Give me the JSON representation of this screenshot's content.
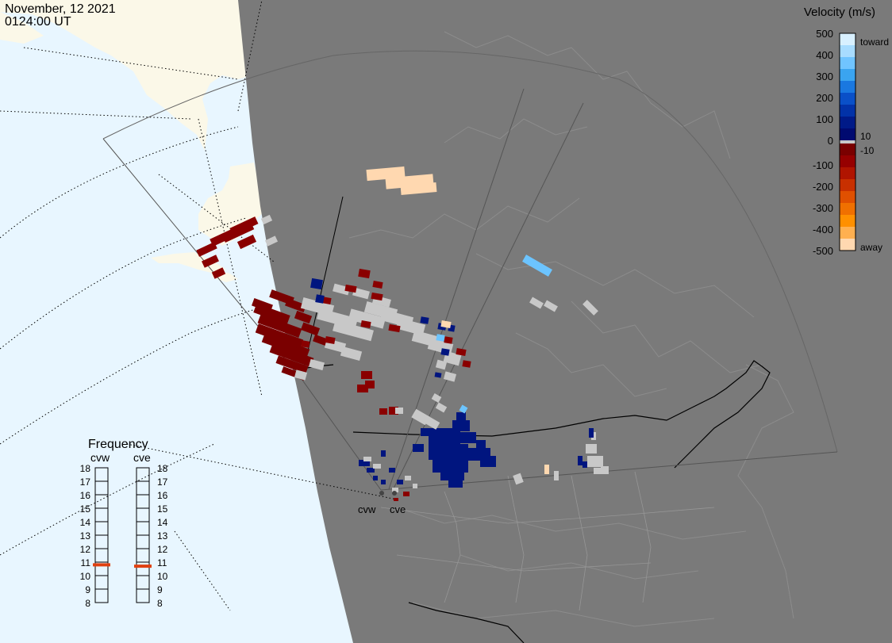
{
  "header": {
    "date": "November, 12 2021",
    "time": "0124:00 UT"
  },
  "colorbar": {
    "title": "Velocity (m/s)",
    "tick_labels": [
      "500",
      "400",
      "300",
      "200",
      "100",
      "0",
      "-100",
      "-200",
      "-300",
      "-400",
      "-500"
    ],
    "tick_values": [
      500,
      400,
      300,
      200,
      100,
      0,
      -100,
      -200,
      -300,
      -400,
      -500
    ],
    "label_toward": "toward",
    "label_away": "away",
    "label_pos_threshold": "10",
    "label_neg_threshold": "-10",
    "colors_toward": [
      "#d8f0ff",
      "#a8dcff",
      "#70c4ff",
      "#3aa4f0",
      "#1a78e0",
      "#0a50c8",
      "#0232a8",
      "#001a88",
      "#000a70"
    ],
    "colors_away": [
      "#7a0000",
      "#960000",
      "#b01400",
      "#c83000",
      "#e05000",
      "#f07000",
      "#ff9000",
      "#ffb050",
      "#ffd8b0"
    ],
    "ground_scatter_color": "#c8c8c8"
  },
  "radars": {
    "west_label": "cvw",
    "east_label": "cve"
  },
  "frequency": {
    "title": "Frequency",
    "col1_label": "cvw",
    "col2_label": "cve",
    "scale_labels": [
      "18",
      "17",
      "16",
      "15",
      "14",
      "13",
      "12",
      "11",
      "10",
      "9",
      "8"
    ],
    "scale_values": [
      18,
      17,
      16,
      15,
      14,
      13,
      12,
      11,
      10,
      9,
      8
    ],
    "cvw_mhz": 10.8,
    "cve_mhz": 10.7,
    "marker_color": "#e04010"
  },
  "map": {
    "ocean_color": "#e8f6ff",
    "land_foreign_color": "#fbf8e8",
    "night_land_color": "#7a7a7a"
  }
}
